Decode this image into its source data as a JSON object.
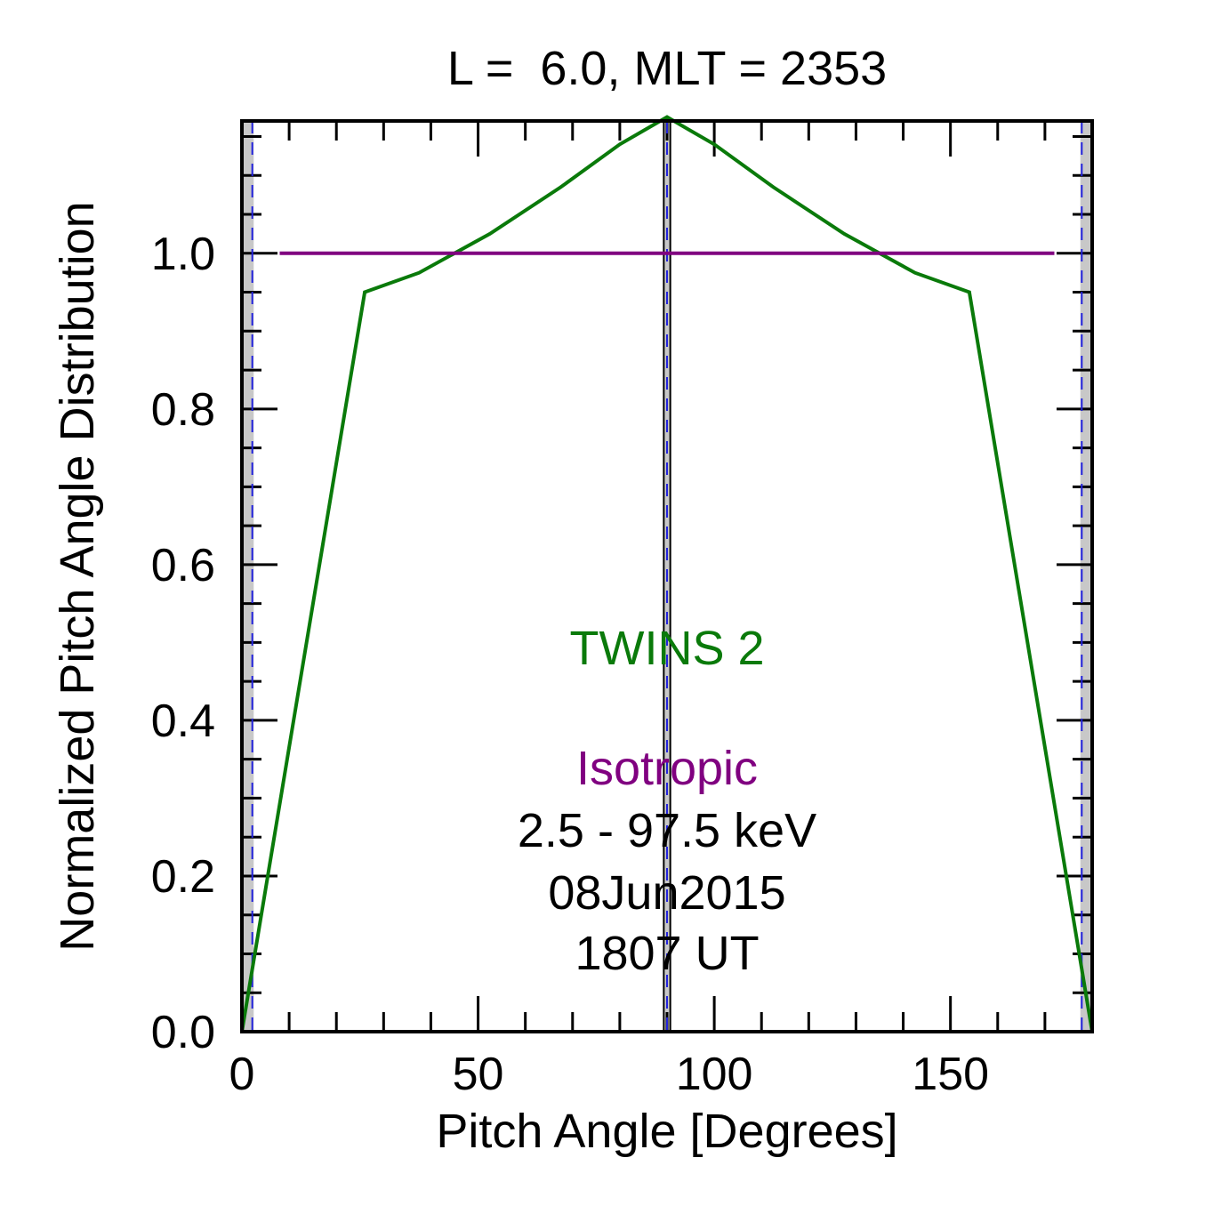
{
  "chart_data": {
    "type": "line",
    "title": "L =  6.0, MLT = 2353",
    "xlabel": "Pitch Angle [Degrees]",
    "ylabel": "Normalized Pitch Angle Distribution",
    "xlim": [
      0,
      180
    ],
    "ylim": [
      0,
      1.17
    ],
    "x_major_ticks": [
      0,
      50,
      100,
      150
    ],
    "x_tick_labels": [
      "0",
      "50",
      "100",
      "150"
    ],
    "x_minor_step": 10,
    "y_major_ticks": [
      0.0,
      0.2,
      0.4,
      0.6,
      0.8,
      1.0
    ],
    "y_tick_labels": [
      "0.0",
      "0.2",
      "0.4",
      "0.6",
      "0.8",
      "1.0"
    ],
    "y_minor_step": 0.05,
    "grid": false,
    "series": [
      {
        "name": "TWINS 2",
        "color": "#0a7a0a",
        "x": [
          0,
          26,
          37.5,
          52.5,
          67.5,
          80,
          90,
          100,
          112.5,
          127.5,
          142.5,
          154,
          180
        ],
        "y": [
          0.0,
          0.95,
          0.975,
          1.025,
          1.085,
          1.14,
          1.175,
          1.14,
          1.085,
          1.025,
          0.975,
          0.95,
          0.0
        ]
      },
      {
        "name": "Isotropic",
        "color": "#800080",
        "x": [
          8,
          172
        ],
        "y": [
          1.0,
          1.0
        ]
      }
    ],
    "loss_cone_bands": [
      {
        "x0": 0,
        "x1": 2.5
      },
      {
        "x0": 177.5,
        "x1": 180
      }
    ],
    "center_band": {
      "x0": 89.5,
      "x1": 90.5
    },
    "reference_lines": [
      {
        "x": 2.2,
        "style": "dashed",
        "color": "#2222dd"
      },
      {
        "x": 90,
        "style": "dashed",
        "color": "#2222dd"
      },
      {
        "x": 177.8,
        "style": "dashed",
        "color": "#2222dd"
      }
    ],
    "annotations": [
      {
        "text": "TWINS 2",
        "color": "#0a7a0a"
      },
      {
        "text": "Isotropic",
        "color": "#800080"
      },
      {
        "text": "2.5 - 97.5 keV",
        "color": "#000000"
      },
      {
        "text": "08Jun2015",
        "color": "#000000"
      },
      {
        "text": "1807 UT",
        "color": "#000000"
      }
    ]
  }
}
